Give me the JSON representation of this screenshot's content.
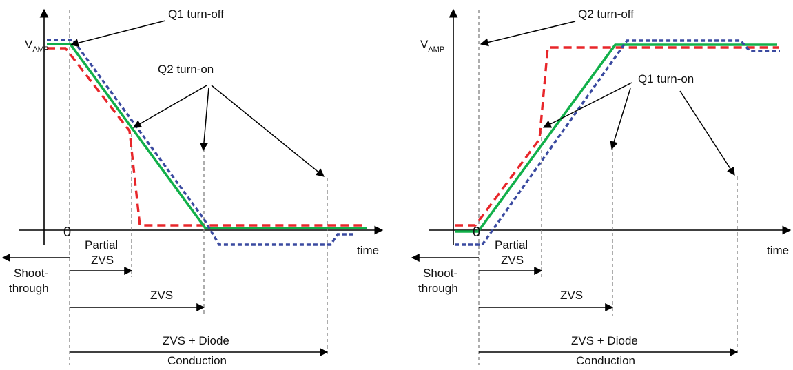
{
  "colors": {
    "red": "#e8262a",
    "green": "#12b04a",
    "blue": "#3a4aa0"
  },
  "left": {
    "v_label_main": "V",
    "v_label_sub": "AMP",
    "zero": "0",
    "time": "time",
    "turnoff": "Q1 turn-off",
    "turnon": "Q2 turn-on",
    "shoot_line1": "Shoot-",
    "shoot_line2": "through",
    "partial_line1": "Partial",
    "partial_line2": "ZVS",
    "zvs": "ZVS",
    "diode_line1": "ZVS + Diode",
    "diode_line2": "Conduction"
  },
  "right": {
    "v_label_main": "V",
    "v_label_sub": "AMP",
    "zero": "0",
    "time": "time",
    "turnoff": "Q2 turn-off",
    "turnon": "Q1 turn-on",
    "shoot_line1": "Shoot-",
    "shoot_line2": "through",
    "partial_line1": "Partial",
    "partial_line2": "ZVS",
    "zvs": "ZVS",
    "diode_line1": "ZVS + Diode",
    "diode_line2": "Conduction"
  }
}
